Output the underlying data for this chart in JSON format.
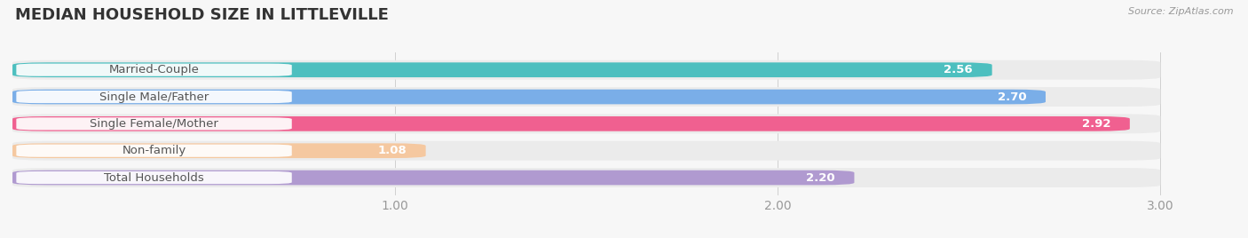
{
  "title": "MEDIAN HOUSEHOLD SIZE IN LITTLEVILLE",
  "source": "Source: ZipAtlas.com",
  "categories": [
    "Married-Couple",
    "Single Male/Father",
    "Single Female/Mother",
    "Non-family",
    "Total Households"
  ],
  "values": [
    2.56,
    2.7,
    2.92,
    1.08,
    2.2
  ],
  "bar_colors": [
    "#4dbfbf",
    "#7aaee8",
    "#f06090",
    "#f5c8a0",
    "#b09ad0"
  ],
  "bar_bg_color": "#ebebeb",
  "value_text_color": "#ffffff",
  "label_text_color": "#555555",
  "xlim_min": 0,
  "xlim_max": 3.18,
  "xdata_max": 3.0,
  "xticks": [
    1.0,
    2.0,
    3.0
  ],
  "title_fontsize": 13,
  "tick_fontsize": 10,
  "value_fontsize": 9.5,
  "cat_fontsize": 9.5,
  "bg_color": "#f7f7f7"
}
